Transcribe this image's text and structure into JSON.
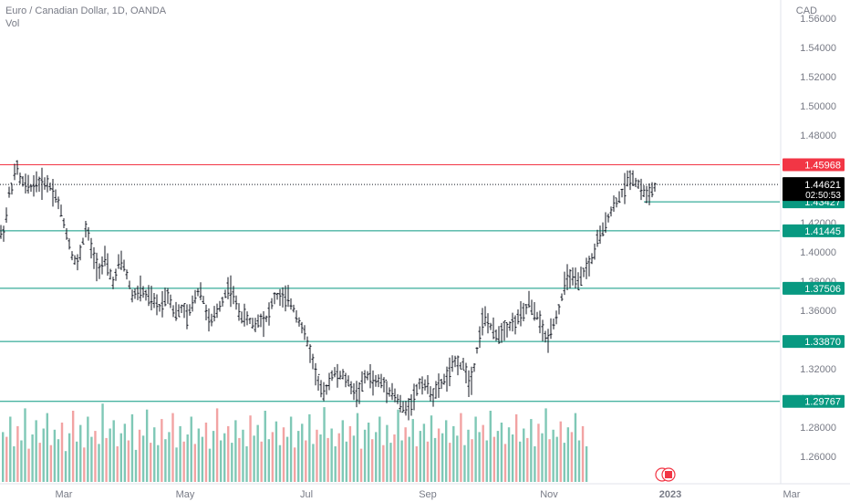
{
  "header": {
    "title": "Euro / Canadian Dollar, 1D, OANDA",
    "indicator": "Vol",
    "currency": "CAD"
  },
  "chart_data": {
    "type": "ohlc-bar",
    "symbol": "EURCAD",
    "timeframe": "1D",
    "y_axis": {
      "range": [
        1.24,
        1.565
      ],
      "ticks": [
        "1.26000",
        "1.28000",
        "1.30000",
        "1.32000",
        "1.34000",
        "1.36000",
        "1.38000",
        "1.40000",
        "1.42000",
        "1.44000",
        "1.46000",
        "1.48000",
        "1.50000",
        "1.52000",
        "1.54000",
        "1.56000"
      ]
    },
    "x_axis": {
      "ticks": [
        {
          "label": "Mar",
          "month": 2
        },
        {
          "label": "May",
          "month": 4
        },
        {
          "label": "Jul",
          "month": 6
        },
        {
          "label": "Sep",
          "month": 8
        },
        {
          "label": "Nov",
          "month": 10
        },
        {
          "label": "2023",
          "month": 12
        },
        {
          "label": "Mar",
          "month": 14
        }
      ]
    },
    "horizontal_levels": [
      {
        "value": 1.45968,
        "label": "1.45968",
        "color": "#f23645"
      },
      {
        "value": 1.41445,
        "label": "1.41445",
        "color": "#089981"
      },
      {
        "value": 1.37506,
        "label": "1.37506",
        "color": "#089981"
      },
      {
        "value": 1.3387,
        "label": "1.33870",
        "color": "#089981"
      },
      {
        "value": 1.29767,
        "label": "1.29767",
        "color": "#089981"
      }
    ],
    "short_level": {
      "value": 1.43427,
      "label": "1.43427",
      "color": "#089981"
    },
    "current_price": {
      "value": 1.44621,
      "label": "1.44621",
      "countdown": "02:50:53"
    },
    "price_path": [
      [
        0,
        1.412
      ],
      [
        5,
        1.415
      ],
      [
        10,
        1.44
      ],
      [
        14,
        1.446
      ],
      [
        18,
        1.46
      ],
      [
        22,
        1.45
      ],
      [
        26,
        1.447
      ],
      [
        30,
        1.445
      ],
      [
        35,
        1.444
      ],
      [
        40,
        1.448
      ],
      [
        45,
        1.446
      ],
      [
        50,
        1.448
      ],
      [
        55,
        1.445
      ],
      [
        60,
        1.44
      ],
      [
        65,
        1.432
      ],
      [
        70,
        1.42
      ],
      [
        75,
        1.408
      ],
      [
        80,
        1.396
      ],
      [
        85,
        1.392
      ],
      [
        90,
        1.405
      ],
      [
        95,
        1.418
      ],
      [
        100,
        1.402
      ],
      [
        105,
        1.392
      ],
      [
        110,
        1.388
      ],
      [
        115,
        1.395
      ],
      [
        120,
        1.386
      ],
      [
        125,
        1.378
      ],
      [
        130,
        1.392
      ],
      [
        135,
        1.393
      ],
      [
        140,
        1.382
      ],
      [
        145,
        1.37
      ],
      [
        150,
        1.372
      ],
      [
        155,
        1.374
      ],
      [
        160,
        1.37
      ],
      [
        165,
        1.368
      ],
      [
        170,
        1.365
      ],
      [
        175,
        1.362
      ],
      [
        180,
        1.368
      ],
      [
        185,
        1.372
      ],
      [
        190,
        1.36
      ],
      [
        195,
        1.358
      ],
      [
        200,
        1.362
      ],
      [
        205,
        1.355
      ],
      [
        210,
        1.362
      ],
      [
        215,
        1.372
      ],
      [
        220,
        1.374
      ],
      [
        225,
        1.362
      ],
      [
        230,
        1.35
      ],
      [
        235,
        1.356
      ],
      [
        240,
        1.362
      ],
      [
        245,
        1.368
      ],
      [
        250,
        1.376
      ],
      [
        255,
        1.372
      ],
      [
        260,
        1.362
      ],
      [
        265,
        1.356
      ],
      [
        270,
        1.355
      ],
      [
        275,
        1.352
      ],
      [
        280,
        1.35
      ],
      [
        285,
        1.355
      ],
      [
        290,
        1.352
      ],
      [
        295,
        1.358
      ],
      [
        300,
        1.368
      ],
      [
        305,
        1.37
      ],
      [
        310,
        1.368
      ],
      [
        315,
        1.368
      ],
      [
        320,
        1.364
      ],
      [
        325,
        1.357
      ],
      [
        330,
        1.35
      ],
      [
        335,
        1.342
      ],
      [
        340,
        1.332
      ],
      [
        345,
        1.32
      ],
      [
        350,
        1.308
      ],
      [
        355,
        1.302
      ],
      [
        360,
        1.31
      ],
      [
        365,
        1.318
      ],
      [
        370,
        1.315
      ],
      [
        375,
        1.316
      ],
      [
        380,
        1.312
      ],
      [
        385,
        1.308
      ],
      [
        390,
        1.302
      ],
      [
        395,
        1.306
      ],
      [
        400,
        1.314
      ],
      [
        405,
        1.316
      ],
      [
        410,
        1.31
      ],
      [
        415,
        1.312
      ],
      [
        420,
        1.31
      ],
      [
        425,
        1.306
      ],
      [
        430,
        1.304
      ],
      [
        435,
        1.3
      ],
      [
        440,
        1.294
      ],
      [
        445,
        1.292
      ],
      [
        450,
        1.296
      ],
      [
        455,
        1.302
      ],
      [
        460,
        1.31
      ],
      [
        465,
        1.31
      ],
      [
        470,
        1.306
      ],
      [
        475,
        1.302
      ],
      [
        480,
        1.306
      ],
      [
        485,
        1.311
      ],
      [
        490,
        1.314
      ],
      [
        495,
        1.32
      ],
      [
        500,
        1.326
      ],
      [
        505,
        1.322
      ],
      [
        510,
        1.322
      ],
      [
        515,
        1.308
      ],
      [
        520,
        1.322
      ],
      [
        525,
        1.34
      ],
      [
        530,
        1.356
      ],
      [
        535,
        1.352
      ],
      [
        540,
        1.346
      ],
      [
        545,
        1.342
      ],
      [
        550,
        1.346
      ],
      [
        555,
        1.348
      ],
      [
        560,
        1.35
      ],
      [
        565,
        1.352
      ],
      [
        570,
        1.356
      ],
      [
        575,
        1.358
      ],
      [
        580,
        1.366
      ],
      [
        585,
        1.358
      ],
      [
        590,
        1.356
      ],
      [
        595,
        1.346
      ],
      [
        600,
        1.338
      ],
      [
        605,
        1.35
      ],
      [
        610,
        1.355
      ],
      [
        615,
        1.366
      ],
      [
        620,
        1.38
      ],
      [
        625,
        1.384
      ],
      [
        630,
        1.38
      ],
      [
        635,
        1.378
      ],
      [
        640,
        1.386
      ],
      [
        645,
        1.39
      ],
      [
        650,
        1.396
      ],
      [
        655,
        1.408
      ],
      [
        660,
        1.412
      ],
      [
        665,
        1.422
      ],
      [
        670,
        1.428
      ],
      [
        675,
        1.434
      ],
      [
        680,
        1.438
      ],
      [
        685,
        1.444
      ],
      [
        690,
        1.452
      ],
      [
        695,
        1.45
      ],
      [
        700,
        1.446
      ],
      [
        705,
        1.442
      ],
      [
        710,
        1.438
      ],
      [
        715,
        1.442
      ],
      [
        720,
        1.446
      ]
    ],
    "volume_relative": [
      0.42,
      0.38,
      0.55,
      0.3,
      0.47,
      0.35,
      0.62,
      0.28,
      0.4,
      0.52,
      0.33,
      0.45,
      0.58,
      0.31,
      0.44,
      0.36,
      0.5,
      0.26,
      0.41,
      0.6,
      0.34,
      0.48,
      0.29,
      0.55,
      0.38,
      0.43,
      0.32,
      0.66,
      0.37,
      0.45,
      0.52,
      0.3,
      0.41,
      0.49,
      0.35,
      0.57,
      0.27,
      0.44,
      0.39,
      0.61,
      0.33,
      0.46,
      0.31,
      0.53,
      0.36,
      0.42,
      0.58,
      0.29,
      0.47,
      0.34,
      0.4,
      0.55,
      0.32,
      0.45,
      0.38,
      0.5,
      0.28,
      0.43,
      0.62,
      0.35,
      0.41,
      0.47,
      0.33,
      0.52,
      0.37,
      0.44,
      0.3,
      0.56,
      0.39,
      0.48,
      0.34,
      0.6,
      0.36,
      0.42,
      0.51,
      0.31,
      0.46,
      0.38,
      0.55,
      0.29,
      0.43,
      0.49,
      0.35,
      0.57,
      0.32,
      0.44,
      0.4,
      0.63,
      0.37,
      0.45,
      0.3,
      0.41,
      0.52,
      0.34,
      0.47,
      0.39,
      0.58,
      0.28,
      0.44,
      0.5,
      0.36,
      0.42,
      0.55,
      0.31,
      0.48,
      0.33,
      0.4,
      0.61,
      0.35,
      0.46,
      0.38,
      0.53,
      0.3,
      0.43,
      0.49,
      0.34,
      0.56,
      0.37,
      0.45,
      0.41,
      0.52,
      0.33,
      0.47,
      0.39,
      0.58,
      0.31,
      0.44,
      0.36,
      0.55,
      0.42,
      0.48,
      0.35,
      0.6,
      0.38,
      0.43,
      0.5,
      0.32,
      0.46,
      0.4,
      0.57,
      0.34,
      0.45,
      0.37,
      0.53,
      0.3,
      0.49,
      0.41,
      0.62,
      0.36,
      0.44,
      0.38,
      0.51,
      0.33,
      0.46,
      0.42,
      0.58,
      0.35,
      0.47,
      0.3
    ],
    "colors": {
      "bar": "#131722",
      "volume_up": "#7fc8b6",
      "volume_down": "#f2a3a3",
      "last_price_box": "#000000",
      "axis_text": "#787b86"
    }
  }
}
